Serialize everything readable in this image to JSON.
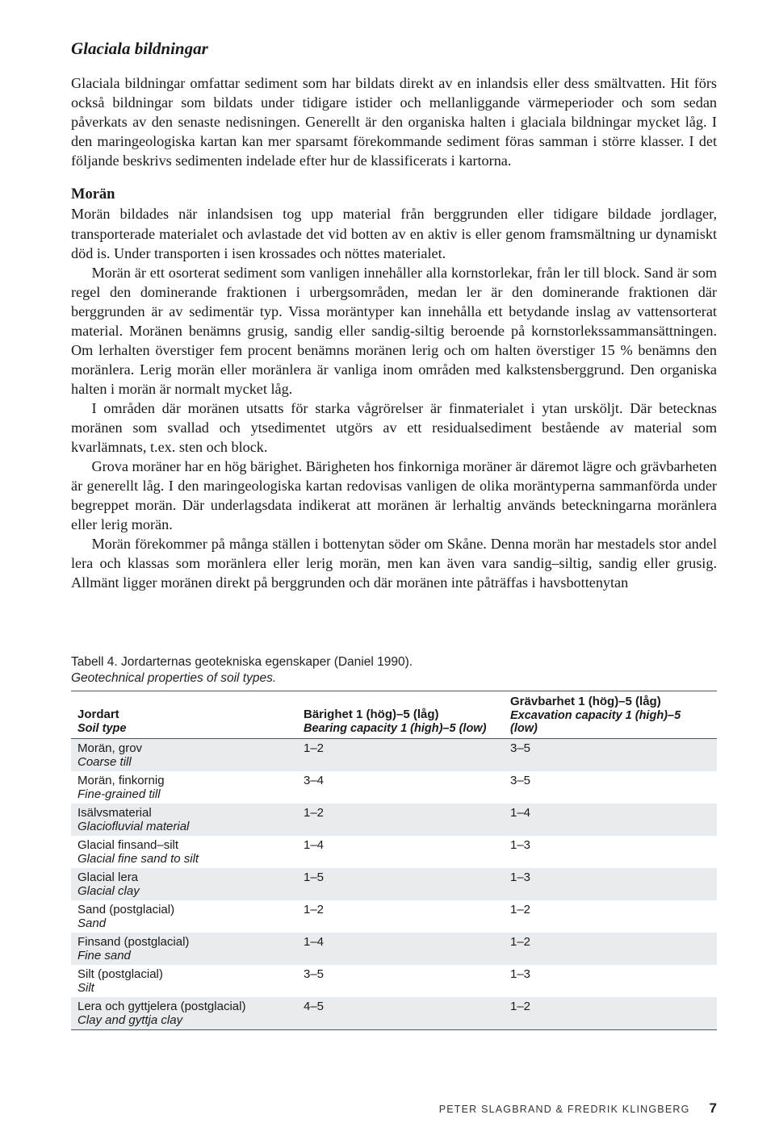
{
  "section_title": "Glaciala bildningar",
  "intro": "Glaciala bildningar omfattar sediment som har bildats direkt av en inlandsis eller dess smältvatten. Hit förs också bildningar som bildats under tidigare istider och mellanliggande värmeperioder och som sedan påverkats av den senaste nedisningen. Generellt är den organiska halten i glaciala bildningar mycket låg. I den maringeologiska kartan kan mer sparsamt förekommande sediment föras samman i större klasser. I det följande beskrivs sedimenten indelade efter hur de klassificerats i kartorna.",
  "moran_heading": "Morän",
  "moran_p1": "Morän bildades när inlandsisen tog upp material från berggrunden eller tidigare bildade jordlager, transporterade materialet och avlastade det vid botten av en aktiv is eller genom framsmältning ur dynamiskt död is. Under transporten i isen krossades och nöttes materialet.",
  "moran_p2": "Morän är ett osorterat sediment som vanligen innehåller alla kornstorlekar, från ler till block. Sand är som regel den dominerande fraktionen i urbergsområden, medan ler är den dominerande fraktionen där berggrunden är av sedimentär typ. Vissa moräntyper kan innehålla ett betydande inslag av vattensorterat material. Moränen benämns grusig, sandig eller sandig-siltig beroende på kornstorlekssammansättningen. Om lerhalten överstiger fem procent benämns moränen lerig och om halten överstiger 15 % benämns den moränlera. Lerig morän eller moränlera är vanliga inom områden med kalkstensberggrund. Den organiska halten i morän är normalt mycket låg.",
  "moran_p3": "I områden där moränen utsatts för starka vågrörelser är finmaterialet i ytan ursköljt. Där betecknas moränen som svallad och ytsedimentet utgörs av ett residualsediment bestående av material som kvarlämnats, t.ex. sten och block.",
  "moran_p4": "Grova moräner har en hög bärighet. Bärigheten hos finkorniga moräner är däremot lägre och grävbarheten är generellt låg. I den maringeologiska kartan redovisas vanligen de olika moräntyperna sammanförda under begreppet morän. Där underlagsdata indikerat att moränen är lerhaltig används beteckningarna moränlera eller lerig morän.",
  "moran_p5": "Morän förekommer på många ställen i bottenytan söder om Skåne. Denna morän har mestadels stor andel lera och klassas som moränlera eller lerig morän, men kan även vara sandig–siltig, sandig eller grusig. Allmänt ligger moränen direkt på berggrunden och där moränen inte påträffas i havsbottenytan",
  "table": {
    "caption": "Tabell 4. Jordarternas geotekniska egenskaper (Daniel 1990).",
    "subcaption": "Geotechnical properties of soil types.",
    "columns": [
      {
        "sv": "Jordart",
        "en": "Soil type"
      },
      {
        "sv": "Bärighet 1 (hög)–5 (låg)",
        "en": "Bearing capacity 1 (high)–5 (low)"
      },
      {
        "sv": "Grävbarhet 1 (hög)–5 (låg)",
        "en": "Excavation capacity 1 (high)–5 (low)"
      }
    ],
    "col_widths": [
      "35%",
      "32%",
      "33%"
    ],
    "rows": [
      {
        "sv": "Morän, grov",
        "en": "Coarse till",
        "bearing": "1–2",
        "excav": "3–5"
      },
      {
        "sv": "Morän, finkornig",
        "en": "Fine-grained till",
        "bearing": "3–4",
        "excav": "3–5"
      },
      {
        "sv": "Isälvsmaterial",
        "en": "Glaciofluvial material",
        "bearing": "1–2",
        "excav": "1–4"
      },
      {
        "sv": "Glacial finsand–silt",
        "en": "Glacial fine sand to silt",
        "bearing": "1–4",
        "excav": "1–3"
      },
      {
        "sv": "Glacial lera",
        "en": "Glacial clay",
        "bearing": "1–5",
        "excav": "1–3"
      },
      {
        "sv": "Sand (postglacial)",
        "en": "Sand",
        "bearing": "1–2",
        "excav": "1–2"
      },
      {
        "sv": "Finsand (postglacial)",
        "en": "Fine sand",
        "bearing": "1–4",
        "excav": "1–2"
      },
      {
        "sv": "Silt (postglacial)",
        "en": "Silt",
        "bearing": "3–5",
        "excav": "1–3"
      },
      {
        "sv": "Lera och gyttjelera (postglacial)",
        "en": "Clay and gyttja clay",
        "bearing": "4–5",
        "excav": "1–2"
      }
    ],
    "stripe_odd_bg": "#e9ecef",
    "stripe_even_bg": "#ffffff",
    "rule_color": "#555555"
  },
  "footer": {
    "authors": "PETER SLAGBRAND & FREDRIK KLINGBERG",
    "page": "7"
  }
}
